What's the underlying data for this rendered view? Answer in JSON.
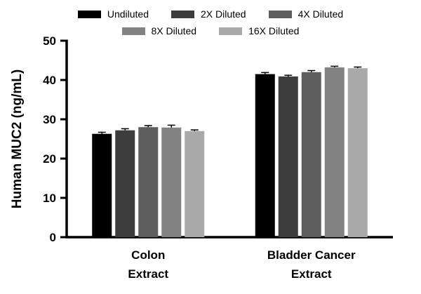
{
  "chart_data": {
    "type": "bar",
    "title": "",
    "xlabel": "",
    "ylabel": "Human MUC2 (ng/mL)",
    "ylim": [
      0,
      50
    ],
    "yticks": [
      0,
      10,
      20,
      30,
      40,
      50
    ],
    "grid": false,
    "legend_position": "top",
    "categories": [
      "Colon Extract",
      "Bladder Cancer Extract"
    ],
    "category_labels": [
      [
        "Colon",
        "Extract"
      ],
      [
        "Bladder Cancer",
        "Extract"
      ]
    ],
    "series": [
      {
        "name": "Undiluted",
        "color": "#000000",
        "values": [
          26.3,
          41.5
        ],
        "errors": [
          0.4,
          0.4
        ]
      },
      {
        "name": "2X Diluted",
        "color": "#3d3d3d",
        "values": [
          27.2,
          40.9
        ],
        "errors": [
          0.4,
          0.3
        ]
      },
      {
        "name": "4X Diluted",
        "color": "#5e5e5e",
        "values": [
          28.0,
          42.0
        ],
        "errors": [
          0.4,
          0.4
        ]
      },
      {
        "name": "8X Diluted",
        "color": "#828282",
        "values": [
          27.9,
          43.2
        ],
        "errors": [
          0.6,
          0.3
        ]
      },
      {
        "name": "16X Diluted",
        "color": "#a9a9a9",
        "values": [
          27.0,
          43.0
        ],
        "errors": [
          0.3,
          0.3
        ]
      }
    ]
  }
}
